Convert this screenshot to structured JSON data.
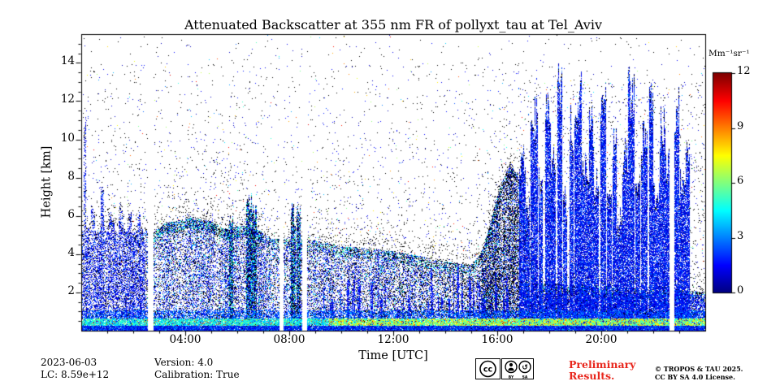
{
  "chart_data": {
    "type": "heatmap",
    "title": "Attenuated Backscatter at 355 nm FR of pollyxt_tau at Tel_Aviv",
    "xlabel": "Time [UTC]",
    "ylabel": "Height [km]",
    "x_unit": "hours UTC",
    "x_range": [
      0,
      24
    ],
    "x_major_ticks": [
      {
        "hour": 4,
        "label": "04:00"
      },
      {
        "hour": 8,
        "label": "08:00"
      },
      {
        "hour": 12,
        "label": "12:00"
      },
      {
        "hour": 16,
        "label": "16:00"
      },
      {
        "hour": 20,
        "label": "20:00"
      }
    ],
    "x_minor_tick_step_hours": 1,
    "y_range_km": [
      0,
      15.5
    ],
    "y_major_ticks_km": [
      2,
      4,
      6,
      8,
      10,
      12,
      14
    ],
    "y_minor_tick_step_km": 0.5,
    "colorbar": {
      "label": "Mm⁻¹sr⁻¹",
      "ticks": [
        0,
        3,
        6,
        9,
        12
      ],
      "range": [
        0,
        12
      ],
      "colormap": "jet"
    },
    "data_gaps_hours": [
      [
        2.55,
        2.75
      ],
      [
        7.6,
        7.78
      ],
      [
        8.5,
        8.68
      ],
      [
        22.6,
        22.8
      ]
    ],
    "aerosol_top_km": [
      [
        0,
        5.3
      ],
      [
        2.45,
        5.3
      ],
      [
        2.75,
        5.1
      ],
      [
        3.2,
        5.6
      ],
      [
        4.2,
        5.9
      ],
      [
        5.0,
        5.7
      ],
      [
        5.5,
        5.3
      ],
      [
        6.2,
        5.5
      ],
      [
        6.9,
        5.2
      ],
      [
        7.3,
        4.8
      ],
      [
        8.0,
        4.8
      ],
      [
        9.0,
        4.7
      ],
      [
        10.0,
        4.4
      ],
      [
        11.0,
        4.3
      ],
      [
        12.0,
        4.15
      ],
      [
        13.0,
        3.9
      ],
      [
        14.0,
        3.6
      ],
      [
        15.0,
        3.4
      ],
      [
        15.4,
        4.2
      ],
      [
        15.8,
        6.0
      ],
      [
        16.1,
        7.6
      ],
      [
        16.5,
        8.8
      ],
      [
        16.8,
        8.0
      ],
      [
        17.1,
        5.5
      ],
      [
        17.5,
        2.5
      ],
      [
        24.0,
        2.0
      ]
    ],
    "early_region": {
      "t_end": 2.45,
      "base_top_km": 5.25,
      "spike_tops_km": [
        [
          0.12,
          11.0
        ],
        [
          0.45,
          6.5
        ],
        [
          0.8,
          7.2
        ],
        [
          1.15,
          6.0
        ],
        [
          1.5,
          6.6
        ],
        [
          1.85,
          5.9
        ],
        [
          2.2,
          6.2
        ]
      ]
    },
    "plume_columns": [
      [
        5.75,
        5.9
      ],
      [
        6.45,
        6.9
      ],
      [
        6.6,
        6.3
      ],
      [
        8.15,
        6.2
      ],
      [
        8.35,
        6.5
      ]
    ],
    "cloud_columns": [
      [
        16.95,
        9.0
      ],
      [
        17.15,
        6.5
      ],
      [
        17.4,
        11.5
      ],
      [
        17.65,
        8.0
      ],
      [
        17.95,
        12.5
      ],
      [
        18.15,
        9.0
      ],
      [
        18.4,
        13.0
      ],
      [
        18.6,
        7.0
      ],
      [
        18.85,
        11.0
      ],
      [
        19.1,
        12.8
      ],
      [
        19.35,
        9.0
      ],
      [
        19.6,
        11.0
      ],
      [
        19.8,
        8.0
      ],
      [
        20.05,
        12.5
      ],
      [
        20.3,
        7.0
      ],
      [
        20.5,
        10.5
      ],
      [
        20.7,
        6.0
      ],
      [
        20.9,
        9.5
      ],
      [
        21.15,
        12.8
      ],
      [
        21.4,
        8.0
      ],
      [
        21.65,
        10.5
      ],
      [
        21.9,
        12.2
      ],
      [
        22.1,
        7.5
      ],
      [
        22.35,
        11.0
      ],
      [
        22.5,
        9.0
      ],
      [
        22.9,
        12.0
      ],
      [
        23.1,
        8.0
      ],
      [
        23.3,
        10.0
      ]
    ],
    "boundary_layer": {
      "bright_band_km": [
        0.27,
        0.62
      ],
      "values_early_Mm": [
        3.0,
        6.2
      ],
      "values_late_Mm": [
        4.2,
        8.2
      ]
    },
    "render_hints": {
      "streak_count": 48,
      "streak_time_range": [
        8.8,
        16.7
      ],
      "base_speckle_density": 0.32,
      "early_density": 0.52,
      "cloud_density": 0.8,
      "convective_window_hours": [
        15.4,
        16.85
      ]
    },
    "notes": "Speckled lidar quicklook: sparse black/blue noise above aerosol layer, bright green-yellow surface layer near 0.4 km, dense blue vertical columns are clouds/precipitation, white vertical stripes are data gaps."
  },
  "footer": {
    "date": "2023-06-03",
    "lc": "LC: 8.59e+12",
    "version": "Version: 4.0",
    "calibration": "Calibration: True",
    "preliminary_line1": "Preliminary",
    "preliminary_line2": "Results.",
    "preliminary_color": "#e8271d",
    "copyright_line1": "© TROPOS & TAU 2025.",
    "copyright_line2": "CC BY SA 4.0 License.",
    "license_badge": {
      "cc": "CC",
      "by": "BY",
      "sa": "SA"
    }
  }
}
